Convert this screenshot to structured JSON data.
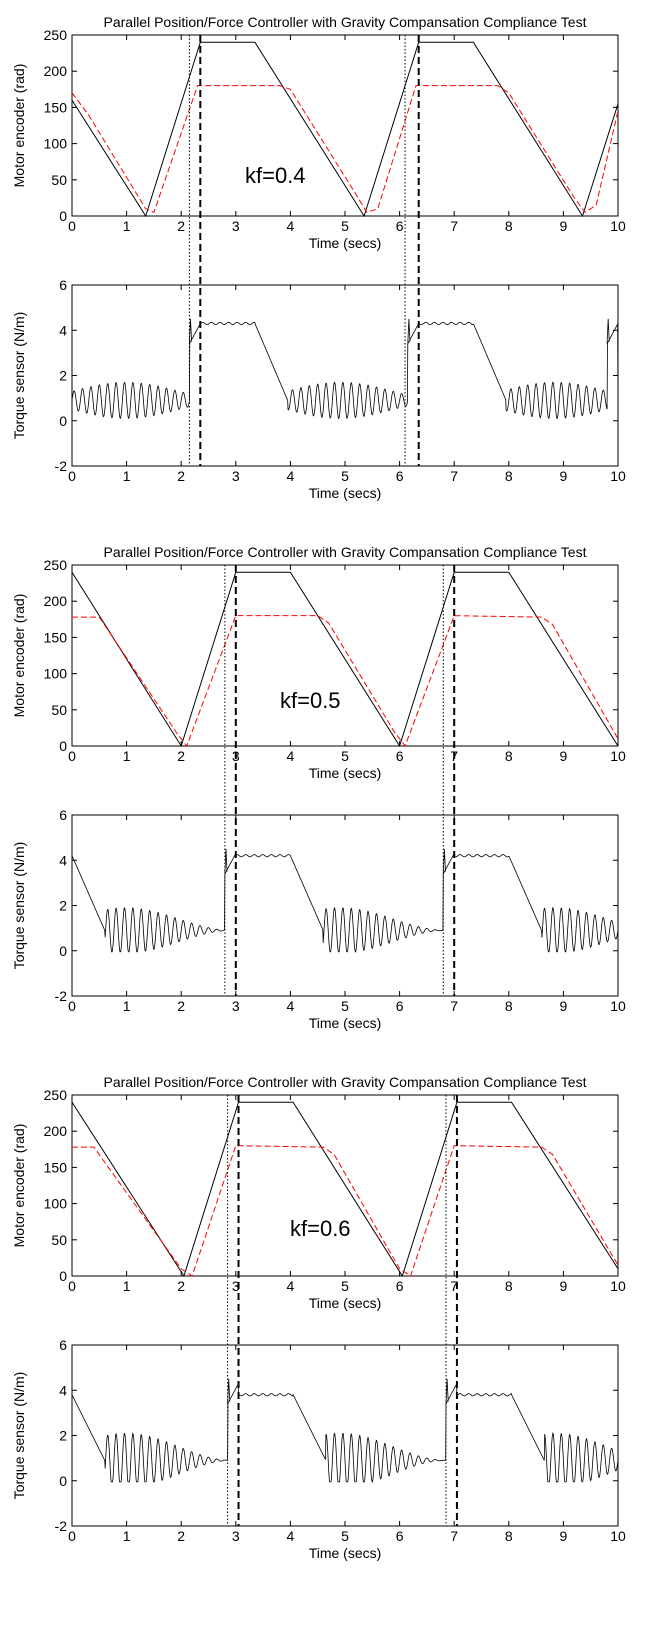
{
  "chart_data": [
    {
      "type": "line",
      "title": "Parallel  Position/Force Controller with Gravity Compansation Compliance Test",
      "annotation": "kf=0.4",
      "top": {
        "ylabel": "Motor encoder (rad)",
        "xlabel": "Time (secs)",
        "xlim": [
          0,
          10
        ],
        "ylim": [
          0,
          250
        ],
        "xticks": [
          "0",
          "1",
          "2",
          "3",
          "4",
          "5",
          "6",
          "7",
          "8",
          "9",
          "10"
        ],
        "yticks": [
          "0",
          "50",
          "100",
          "150",
          "200",
          "250"
        ],
        "series": [
          {
            "style": "solid",
            "color": "#000000",
            "x": [
              0,
              1.35,
              2.35,
              3.35,
              5.35,
              6.35,
              7.35,
              9.35,
              10
            ],
            "y": [
              160,
              0,
              240,
              240,
              0,
              240,
              240,
              0,
              155
            ]
          },
          {
            "style": "dashed",
            "color": "#ff0000",
            "x": [
              0,
              0.3,
              1.35,
              1.5,
              2.3,
              3.8,
              4.0,
              5.2,
              5.4,
              5.6,
              6.3,
              7.8,
              8.0,
              9.2,
              9.4,
              9.6,
              10
            ],
            "y": [
              170,
              140,
              10,
              5,
              180,
              180,
              175,
              30,
              5,
              10,
              180,
              180,
              170,
              25,
              5,
              15,
              145
            ]
          }
        ]
      },
      "bottom": {
        "ylabel": "Torque sensor (N/m)",
        "xlabel": "Time (secs)",
        "xlim": [
          0,
          10
        ],
        "ylim": [
          -2,
          6
        ],
        "xticks": [
          "0",
          "1",
          "2",
          "3",
          "4",
          "5",
          "6",
          "7",
          "8",
          "9",
          "10"
        ],
        "yticks": [
          "-2",
          "0",
          "2",
          "4",
          "6"
        ],
        "steady": 4.3,
        "osc_amp": 0.8
      },
      "vlines": {
        "dotted": [
          2.15,
          6.1
        ],
        "dashed": [
          2.35,
          6.35
        ]
      }
    },
    {
      "type": "line",
      "title": "Parallel  Position/Force Controller with Gravity Compansation Compliance Test",
      "annotation": "kf=0.5",
      "top": {
        "ylabel": "Motor encoder (rad)",
        "xlabel": "Time (secs)",
        "xlim": [
          0,
          10
        ],
        "ylim": [
          0,
          250
        ],
        "xticks": [
          "0",
          "1",
          "2",
          "3",
          "4",
          "5",
          "6",
          "7",
          "8",
          "9",
          "10"
        ],
        "yticks": [
          "0",
          "50",
          "100",
          "150",
          "200",
          "250"
        ],
        "series": [
          {
            "style": "solid",
            "color": "#000000",
            "x": [
              0,
              2.0,
              3.0,
              4.0,
              6.0,
              7.0,
              8.0,
              10
            ],
            "y": [
              240,
              0,
              240,
              240,
              0,
              240,
              240,
              0
            ]
          },
          {
            "style": "dashed",
            "color": "#ff0000",
            "x": [
              0,
              0.5,
              1.9,
              2.1,
              3.0,
              4.5,
              4.7,
              5.9,
              6.1,
              7.0,
              8.6,
              8.8,
              10
            ],
            "y": [
              178,
              178,
              20,
              0,
              180,
              180,
              170,
              20,
              0,
              180,
              178,
              168,
              10
            ]
          }
        ]
      },
      "bottom": {
        "ylabel": "Torque sensor (N/m)",
        "xlabel": "Time (secs)",
        "xlim": [
          0,
          10
        ],
        "ylim": [
          -2,
          6
        ],
        "xticks": [
          "0",
          "1",
          "2",
          "3",
          "4",
          "5",
          "6",
          "7",
          "8",
          "9",
          "10"
        ],
        "yticks": [
          "-2",
          "0",
          "2",
          "4",
          "6"
        ],
        "steady": 4.2,
        "osc_amp": 1.0
      },
      "vlines": {
        "dotted": [
          2.8,
          6.8
        ],
        "dashed": [
          3.0,
          7.0
        ]
      }
    },
    {
      "type": "line",
      "title": "Parallel  Position/Force Controller with Gravity Compansation Compliance Test",
      "annotation": "kf=0.6",
      "top": {
        "ylabel": "Motor encoder (rad)",
        "xlabel": "Time (secs)",
        "xlim": [
          0,
          10
        ],
        "ylim": [
          0,
          250
        ],
        "xticks": [
          "0",
          "1",
          "2",
          "3",
          "4",
          "5",
          "6",
          "7",
          "8",
          "9",
          "10"
        ],
        "yticks": [
          "0",
          "50",
          "100",
          "150",
          "200",
          "250"
        ],
        "series": [
          {
            "style": "solid",
            "color": "#000000",
            "x": [
              0,
              2.05,
              3.05,
              4.05,
              6.05,
              7.05,
              8.05,
              10
            ],
            "y": [
              240,
              0,
              240,
              240,
              0,
              240,
              240,
              10
            ]
          },
          {
            "style": "dashed",
            "color": "#ff0000",
            "x": [
              0,
              0.4,
              2.0,
              2.2,
              3.0,
              4.6,
              4.8,
              6.0,
              6.2,
              7.0,
              8.6,
              8.8,
              10
            ],
            "y": [
              178,
              178,
              10,
              0,
              180,
              178,
              168,
              10,
              0,
              180,
              178,
              168,
              15
            ]
          }
        ]
      },
      "bottom": {
        "ylabel": "Torque sensor (N/m)",
        "xlabel": "Time (secs)",
        "xlim": [
          0,
          10
        ],
        "ylim": [
          -2,
          6
        ],
        "xticks": [
          "0",
          "1",
          "2",
          "3",
          "4",
          "5",
          "6",
          "7",
          "8",
          "9",
          "10"
        ],
        "yticks": [
          "-2",
          "0",
          "2",
          "4",
          "6"
        ],
        "steady": 3.8,
        "osc_amp": 1.2
      },
      "vlines": {
        "dotted": [
          2.85,
          6.85
        ],
        "dashed": [
          3.05,
          7.05
        ]
      }
    }
  ]
}
